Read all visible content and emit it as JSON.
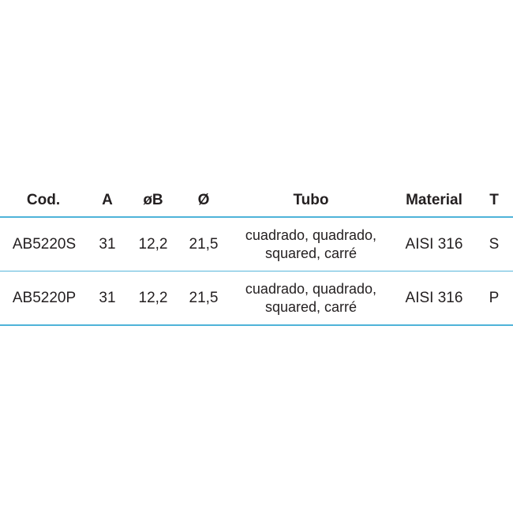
{
  "table": {
    "headers": {
      "cod": "Cod.",
      "a": "A",
      "b": "øB",
      "d": "Ø",
      "tubo": "Tubo",
      "material": "Material",
      "t": "T"
    },
    "rows": [
      {
        "cod": "AB5220S",
        "a": "31",
        "b": "12,2",
        "d": "21,5",
        "tubo_line1": "cuadrado, quadrado,",
        "tubo_line2": "squared, carré",
        "material": "AISI 316",
        "t": "S"
      },
      {
        "cod": "AB5220P",
        "a": "31",
        "b": "12,2",
        "d": "21,5",
        "tubo_line1": "cuadrado, quadrado,",
        "tubo_line2": "squared, carré",
        "material": "AISI 316",
        "t": "P"
      }
    ]
  },
  "colors": {
    "rule": "#4fb3d9",
    "text": "#231f20"
  }
}
